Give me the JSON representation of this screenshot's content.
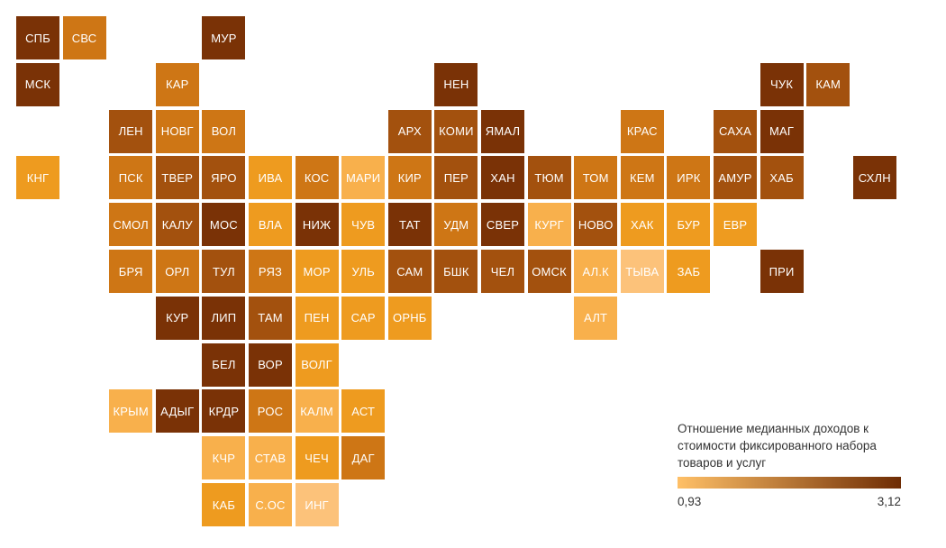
{
  "legend": {
    "title": "Отношение медианных доходов к стоимости фиксированного набора товаров и услуг",
    "min_label": "0,93",
    "max_label": "3,12",
    "color_min": "#FFC067",
    "color_max": "#6E2C04"
  },
  "palette": {
    "dark": "#7A3206",
    "dark_mid": "#A3510E",
    "mid": "#CE7615",
    "mid_light": "#EE9B1F",
    "light": "#F8B04C",
    "lightest": "#FCC27A"
  },
  "regions": [
    {
      "label": "СПБ",
      "col": 0,
      "row": 0,
      "level": "dark"
    },
    {
      "label": "СВС",
      "col": 1,
      "row": 0,
      "level": "mid"
    },
    {
      "label": "МУР",
      "col": 4,
      "row": 0,
      "level": "dark"
    },
    {
      "label": "МСК",
      "col": 0,
      "row": 1,
      "level": "dark"
    },
    {
      "label": "КАР",
      "col": 3,
      "row": 1,
      "level": "mid"
    },
    {
      "label": "НЕН",
      "col": 9,
      "row": 1,
      "level": "dark"
    },
    {
      "label": "ЧУК",
      "col": 16,
      "row": 1,
      "level": "dark"
    },
    {
      "label": "КАМ",
      "col": 17,
      "row": 1,
      "level": "dark_mid"
    },
    {
      "label": "ЛЕН",
      "col": 2,
      "row": 2,
      "level": "dark_mid"
    },
    {
      "label": "НОВГ",
      "col": 3,
      "row": 2,
      "level": "mid"
    },
    {
      "label": "ВОЛ",
      "col": 4,
      "row": 2,
      "level": "mid"
    },
    {
      "label": "АРХ",
      "col": 8,
      "row": 2,
      "level": "dark_mid"
    },
    {
      "label": "КОМИ",
      "col": 9,
      "row": 2,
      "level": "dark_mid"
    },
    {
      "label": "ЯМАЛ",
      "col": 10,
      "row": 2,
      "level": "dark"
    },
    {
      "label": "КРАС",
      "col": 13,
      "row": 2,
      "level": "mid"
    },
    {
      "label": "САХА",
      "col": 15,
      "row": 2,
      "level": "dark_mid"
    },
    {
      "label": "МАГ",
      "col": 16,
      "row": 2,
      "level": "dark"
    },
    {
      "label": "КНГ",
      "col": 0,
      "row": 3,
      "level": "mid_light"
    },
    {
      "label": "ПСК",
      "col": 2,
      "row": 3,
      "level": "mid"
    },
    {
      "label": "ТВЕР",
      "col": 3,
      "row": 3,
      "level": "dark_mid"
    },
    {
      "label": "ЯРО",
      "col": 4,
      "row": 3,
      "level": "dark_mid"
    },
    {
      "label": "ИВА",
      "col": 5,
      "row": 3,
      "level": "mid_light"
    },
    {
      "label": "КОС",
      "col": 6,
      "row": 3,
      "level": "mid"
    },
    {
      "label": "МАРИ",
      "col": 7,
      "row": 3,
      "level": "light"
    },
    {
      "label": "КИР",
      "col": 8,
      "row": 3,
      "level": "mid"
    },
    {
      "label": "ПЕР",
      "col": 9,
      "row": 3,
      "level": "dark_mid"
    },
    {
      "label": "ХАН",
      "col": 10,
      "row": 3,
      "level": "dark"
    },
    {
      "label": "ТЮМ",
      "col": 11,
      "row": 3,
      "level": "dark_mid"
    },
    {
      "label": "ТОМ",
      "col": 12,
      "row": 3,
      "level": "mid"
    },
    {
      "label": "КЕМ",
      "col": 13,
      "row": 3,
      "level": "mid"
    },
    {
      "label": "ИРК",
      "col": 14,
      "row": 3,
      "level": "mid"
    },
    {
      "label": "АМУР",
      "col": 15,
      "row": 3,
      "level": "dark_mid"
    },
    {
      "label": "ХАБ",
      "col": 16,
      "row": 3,
      "level": "dark_mid"
    },
    {
      "label": "СХЛН",
      "col": 18,
      "row": 3,
      "level": "dark"
    },
    {
      "label": "СМОЛ",
      "col": 2,
      "row": 4,
      "level": "mid"
    },
    {
      "label": "КАЛУ",
      "col": 3,
      "row": 4,
      "level": "dark_mid"
    },
    {
      "label": "МОС",
      "col": 4,
      "row": 4,
      "level": "dark"
    },
    {
      "label": "ВЛА",
      "col": 5,
      "row": 4,
      "level": "mid_light"
    },
    {
      "label": "НИЖ",
      "col": 6,
      "row": 4,
      "level": "dark"
    },
    {
      "label": "ЧУВ",
      "col": 7,
      "row": 4,
      "level": "mid_light"
    },
    {
      "label": "ТАТ",
      "col": 8,
      "row": 4,
      "level": "dark"
    },
    {
      "label": "УДМ",
      "col": 9,
      "row": 4,
      "level": "mid"
    },
    {
      "label": "СВЕР",
      "col": 10,
      "row": 4,
      "level": "dark"
    },
    {
      "label": "КУРГ",
      "col": 11,
      "row": 4,
      "level": "light"
    },
    {
      "label": "НОВО",
      "col": 12,
      "row": 4,
      "level": "dark_mid"
    },
    {
      "label": "ХАК",
      "col": 13,
      "row": 4,
      "level": "mid_light"
    },
    {
      "label": "БУР",
      "col": 14,
      "row": 4,
      "level": "mid_light"
    },
    {
      "label": "ЕВР",
      "col": 15,
      "row": 4,
      "level": "mid_light"
    },
    {
      "label": "БРЯ",
      "col": 2,
      "row": 5,
      "level": "mid"
    },
    {
      "label": "ОРЛ",
      "col": 3,
      "row": 5,
      "level": "mid"
    },
    {
      "label": "ТУЛ",
      "col": 4,
      "row": 5,
      "level": "dark_mid"
    },
    {
      "label": "РЯЗ",
      "col": 5,
      "row": 5,
      "level": "mid"
    },
    {
      "label": "МОР",
      "col": 6,
      "row": 5,
      "level": "mid_light"
    },
    {
      "label": "УЛЬ",
      "col": 7,
      "row": 5,
      "level": "mid_light"
    },
    {
      "label": "САМ",
      "col": 8,
      "row": 5,
      "level": "dark_mid"
    },
    {
      "label": "БШК",
      "col": 9,
      "row": 5,
      "level": "dark_mid"
    },
    {
      "label": "ЧЕЛ",
      "col": 10,
      "row": 5,
      "level": "dark_mid"
    },
    {
      "label": "ОМСК",
      "col": 11,
      "row": 5,
      "level": "dark_mid"
    },
    {
      "label": "АЛ.К",
      "col": 12,
      "row": 5,
      "level": "light"
    },
    {
      "label": "ТЫВА",
      "col": 13,
      "row": 5,
      "level": "lightest"
    },
    {
      "label": "ЗАБ",
      "col": 14,
      "row": 5,
      "level": "mid_light"
    },
    {
      "label": "ПРИ",
      "col": 16,
      "row": 5,
      "level": "dark"
    },
    {
      "label": "КУР",
      "col": 3,
      "row": 6,
      "level": "dark"
    },
    {
      "label": "ЛИП",
      "col": 4,
      "row": 6,
      "level": "dark"
    },
    {
      "label": "ТАМ",
      "col": 5,
      "row": 6,
      "level": "dark_mid"
    },
    {
      "label": "ПЕН",
      "col": 6,
      "row": 6,
      "level": "mid_light"
    },
    {
      "label": "САР",
      "col": 7,
      "row": 6,
      "level": "mid_light"
    },
    {
      "label": "ОРНБ",
      "col": 8,
      "row": 6,
      "level": "mid_light"
    },
    {
      "label": "АЛТ",
      "col": 12,
      "row": 6,
      "level": "light"
    },
    {
      "label": "БЕЛ",
      "col": 4,
      "row": 7,
      "level": "dark"
    },
    {
      "label": "ВОР",
      "col": 5,
      "row": 7,
      "level": "dark"
    },
    {
      "label": "ВОЛГ",
      "col": 6,
      "row": 7,
      "level": "mid_light"
    },
    {
      "label": "КРЫМ",
      "col": 2,
      "row": 8,
      "level": "light"
    },
    {
      "label": "АДЫГ",
      "col": 3,
      "row": 8,
      "level": "dark"
    },
    {
      "label": "КРДР",
      "col": 4,
      "row": 8,
      "level": "dark"
    },
    {
      "label": "РОС",
      "col": 5,
      "row": 8,
      "level": "mid"
    },
    {
      "label": "КАЛМ",
      "col": 6,
      "row": 8,
      "level": "light"
    },
    {
      "label": "АСТ",
      "col": 7,
      "row": 8,
      "level": "mid_light"
    },
    {
      "label": "КЧР",
      "col": 4,
      "row": 9,
      "level": "light"
    },
    {
      "label": "СТАВ",
      "col": 5,
      "row": 9,
      "level": "light"
    },
    {
      "label": "ЧЕЧ",
      "col": 6,
      "row": 9,
      "level": "mid_light"
    },
    {
      "label": "ДАГ",
      "col": 7,
      "row": 9,
      "level": "mid"
    },
    {
      "label": "КАБ",
      "col": 4,
      "row": 10,
      "level": "mid_light"
    },
    {
      "label": "С.ОС",
      "col": 5,
      "row": 10,
      "level": "light"
    },
    {
      "label": "ИНГ",
      "col": 6,
      "row": 10,
      "level": "lightest"
    }
  ]
}
